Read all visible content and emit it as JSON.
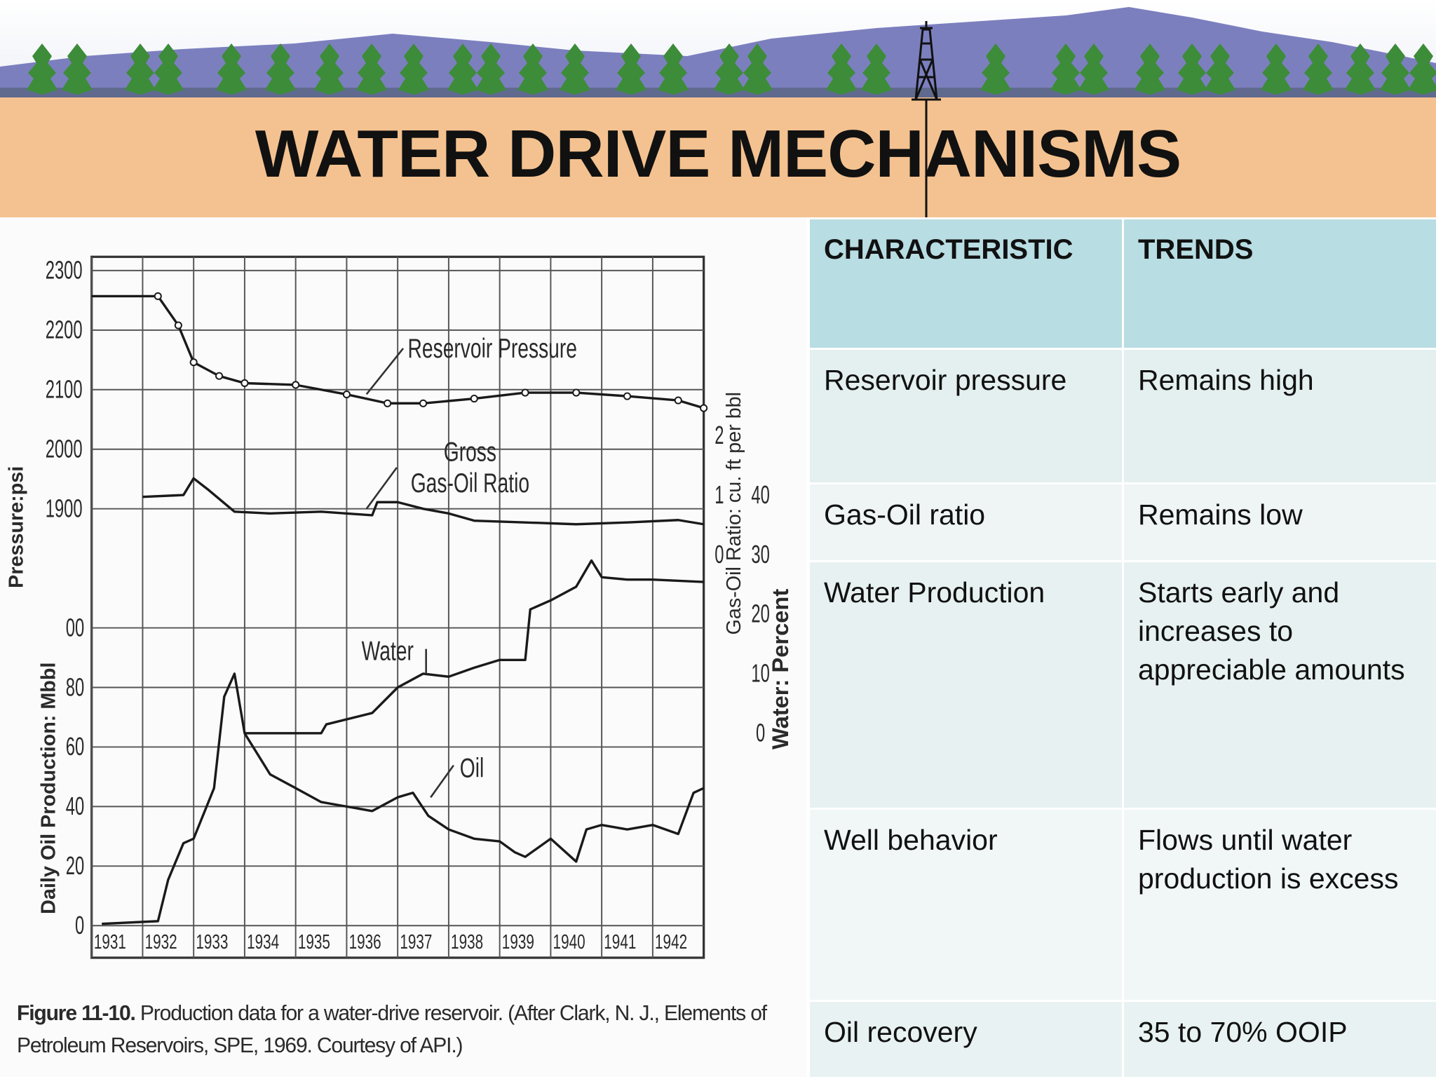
{
  "header": {
    "title": "WATER DRIVE MECHANISMS"
  },
  "chart_data": {
    "type": "line",
    "xlim": [
      1931,
      1943
    ],
    "xticks": [
      1931,
      1932,
      1933,
      1934,
      1935,
      1936,
      1937,
      1938,
      1939,
      1940,
      1941,
      1942
    ],
    "grid": true,
    "axes": {
      "pressure": {
        "label": "Pressure:psi",
        "lim": [
          1900,
          2300
        ],
        "ticks": [
          1900,
          2000,
          2100,
          2200,
          2300
        ]
      },
      "oil": {
        "label": "Daily Oil Production: Mbbl",
        "lim": [
          0,
          100
        ],
        "ticks": [
          0,
          20,
          40,
          60,
          80,
          {
            "value": 100,
            "label": "00"
          }
        ]
      },
      "gor": {
        "label": "Gas-Oil Ratio: cu. ft per bbl",
        "lim": [
          0,
          2
        ],
        "ticks": [
          0,
          1,
          2
        ]
      },
      "water": {
        "label": "Water: Percent",
        "lim": [
          0,
          40
        ],
        "ticks": [
          0,
          10,
          20,
          30,
          40
        ]
      }
    },
    "series": [
      {
        "label": [
          "Reservoir Pressure"
        ],
        "axis": "pressure",
        "color": "#1a1a1a",
        "x": [
          1931,
          1932.3,
          1932.7,
          1933,
          1933.5,
          1934,
          1935,
          1936,
          1936.8,
          1937.5,
          1938.5,
          1939.5,
          1940.5,
          1941.5,
          1942.5,
          1943
        ],
        "values": [
          2257,
          2257,
          2208,
          2146,
          2123,
          2111,
          2108,
          2092,
          2077,
          2077,
          2085,
          2095,
          2095,
          2089,
          2082,
          2069
        ]
      },
      {
        "label": [
          "Gross",
          "Gas-Oil Ratio"
        ],
        "axis": "gor",
        "color": "#1a1a1a",
        "x": [
          1932,
          1932.8,
          1933,
          1933.3,
          1933.8,
          1934.5,
          1935.5,
          1936.5,
          1936.6,
          1937,
          1937.5,
          1938,
          1938.5,
          1939.5,
          1940.5,
          1941.5,
          1942.5,
          1943
        ],
        "values": [
          0.97,
          1.0,
          1.28,
          1.08,
          0.72,
          0.69,
          0.72,
          0.66,
          0.88,
          0.88,
          0.77,
          0.69,
          0.57,
          0.54,
          0.51,
          0.54,
          0.58,
          0.51
        ]
      },
      {
        "label": [
          "Water"
        ],
        "axis": "water",
        "color": "#1a1a1a",
        "x": [
          1934,
          1935.5,
          1935.6,
          1936.5,
          1937,
          1937.5,
          1938,
          1938.5,
          1939,
          1939.5,
          1939.6,
          1940,
          1940.5,
          1940.8,
          1941,
          1941.5,
          1942,
          1943
        ],
        "values": [
          0,
          0,
          1.5,
          3.4,
          7.7,
          10,
          9.5,
          11,
          12.3,
          12.3,
          20.8,
          22.3,
          24.6,
          29,
          26.2,
          25.8,
          25.8,
          25.4
        ]
      },
      {
        "label": [
          "Oil"
        ],
        "axis": "oil",
        "color": "#1a1a1a",
        "x": [
          1931.2,
          1932.3,
          1932.5,
          1932.8,
          1933,
          1933.4,
          1933.6,
          1933.8,
          1934,
          1934.5,
          1935,
          1935.5,
          1936,
          1936.5,
          1937,
          1937.3,
          1937.6,
          1938,
          1938.5,
          1939,
          1939.3,
          1939.5,
          1940,
          1940.5,
          1940.7,
          1941,
          1941.5,
          1942,
          1942.5,
          1942.8,
          1943
        ],
        "values": [
          0.6,
          1.5,
          15.4,
          27.7,
          29.2,
          46.2,
          76.9,
          84.6,
          64.6,
          50.8,
          46.2,
          41.5,
          40,
          38.5,
          43.1,
          44.6,
          36.9,
          32.3,
          29.2,
          28.3,
          24.6,
          23.1,
          29.2,
          21.5,
          32.3,
          33.8,
          32.3,
          33.8,
          30.8,
          44.6,
          46.2
        ]
      }
    ]
  },
  "caption": {
    "label": "Figure 11-10.",
    "text": "Production data for a water-drive reservoir. (After Clark, N. J., Elements of Petroleum Reservoirs, SPE, 1969. Courtesy of API.)"
  },
  "table": {
    "header": [
      "CHARACTERISTIC",
      "TRENDS"
    ],
    "rows": [
      [
        "Reservoir pressure",
        "Remains high"
      ],
      [
        "Gas-Oil ratio",
        "Remains low"
      ],
      [
        "Water Production",
        "Starts early and increases to appreciable amounts"
      ],
      [
        "Well behavior",
        "Flows until water production is excess"
      ],
      [
        "Oil recovery",
        "35 to 70% OOIP"
      ]
    ]
  }
}
